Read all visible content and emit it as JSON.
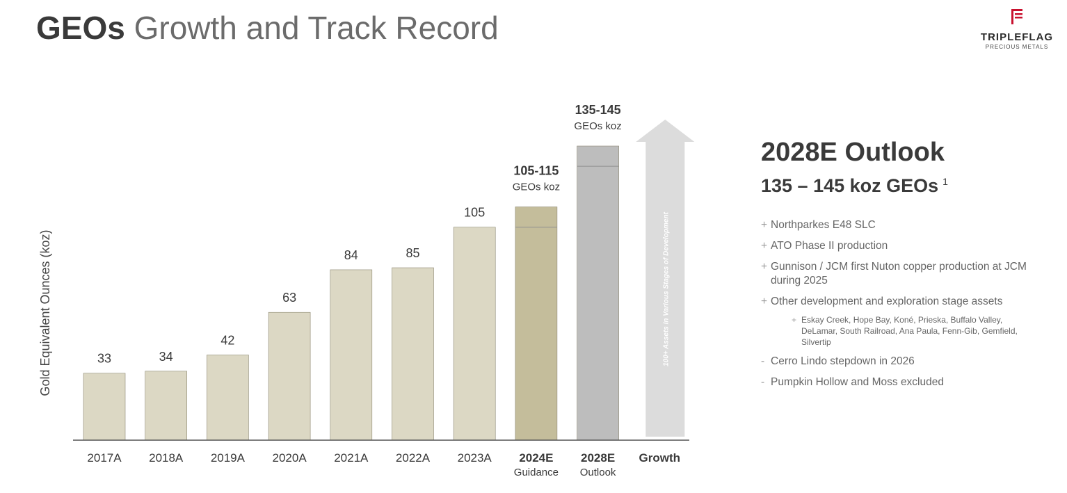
{
  "title": {
    "bold": "GEOs",
    "light": "Growth and Track Record"
  },
  "logo": {
    "name": "TRIPLEFLAG",
    "sub": "PRECIOUS METALS"
  },
  "chart_data": {
    "type": "bar",
    "ylabel": "Gold Equivalent Ounces (koz)",
    "ylim": [
      0,
      145
    ],
    "grid": false,
    "categories": [
      "2017A",
      "2018A",
      "2019A",
      "2020A",
      "2021A",
      "2022A",
      "2023A",
      "2024E",
      "2028E",
      "Growth"
    ],
    "category_sublabels": [
      "",
      "",
      "",
      "",
      "",
      "",
      "",
      "Guidance",
      "Outlook",
      ""
    ],
    "values": [
      33,
      34,
      42,
      63,
      84,
      85,
      105,
      null,
      null,
      null
    ],
    "ranges": [
      null,
      null,
      null,
      null,
      null,
      null,
      null,
      [
        105,
        115
      ],
      [
        135,
        145
      ],
      null
    ],
    "data_labels": [
      "33",
      "34",
      "42",
      "63",
      "84",
      "85",
      "105",
      "105-115",
      "135-145",
      ""
    ],
    "data_sublabels": [
      "",
      "",
      "",
      "",
      "",
      "",
      "",
      "GEOs koz",
      "GEOs koz",
      ""
    ],
    "growth_arrow_text": "100+ Assets in Various Stages of Development",
    "colors": {
      "actual": "#dcd8c4",
      "guidance": "#c4bd9b",
      "outlook": "#bdbdbd",
      "arrow": "#dcdcdc"
    }
  },
  "outlook": {
    "heading": "2028E Outlook",
    "subheading": "135 – 145 koz GEOs",
    "footnote": "1",
    "items": [
      {
        "marker": "+",
        "text": "Northparkes E48 SLC"
      },
      {
        "marker": "+",
        "text": "ATO Phase II production"
      },
      {
        "marker": "+",
        "text": "Gunnison / JCM first Nuton copper production at JCM during 2025"
      },
      {
        "marker": "+",
        "text": "Other development and exploration stage assets"
      }
    ],
    "subitem": {
      "marker": "+",
      "text": "Eskay Creek, Hope Bay, Koné, Prieska, Buffalo Valley, DeLamar, South Railroad, Ana Paula, Fenn-Gib, Gemfield, Silvertip"
    },
    "minus_items": [
      {
        "marker": "-",
        "text": "Cerro Lindo stepdown in 2026"
      },
      {
        "marker": "-",
        "text": "Pumpkin Hollow and Moss excluded"
      }
    ]
  }
}
